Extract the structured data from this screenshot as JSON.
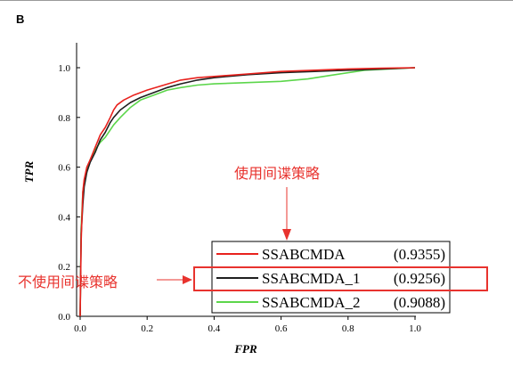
{
  "panel_label": "B",
  "chart_data": {
    "type": "line",
    "xlabel": "FPR",
    "ylabel": "TPR",
    "xlim": [
      0.0,
      1.0
    ],
    "ylim": [
      0.0,
      1.05
    ],
    "x_ticks": [
      "0.0",
      "0.2",
      "0.4",
      "0.6",
      "0.8",
      "1.0"
    ],
    "y_ticks": [
      "0.0",
      "0.2",
      "0.4",
      "0.6",
      "0.8",
      "1.0"
    ],
    "grid": false,
    "legend_position": "bottom-right",
    "series": [
      {
        "name": "SSABCMDA",
        "auc": "(0.9355)",
        "color": "#e8211d",
        "x": [
          0.0,
          0.003,
          0.008,
          0.012,
          0.02,
          0.03,
          0.045,
          0.06,
          0.075,
          0.09,
          0.1,
          0.11,
          0.13,
          0.16,
          0.2,
          0.25,
          0.3,
          0.35,
          0.4,
          0.5,
          0.6,
          0.7,
          0.8,
          0.9,
          1.0
        ],
        "y": [
          0.0,
          0.3,
          0.5,
          0.55,
          0.6,
          0.63,
          0.68,
          0.73,
          0.76,
          0.8,
          0.83,
          0.85,
          0.87,
          0.89,
          0.91,
          0.93,
          0.95,
          0.96,
          0.965,
          0.975,
          0.985,
          0.99,
          0.995,
          0.998,
          1.0
        ]
      },
      {
        "name": "SSABCMDA_1",
        "auc": "(0.9256)",
        "color": "#1f1f1f",
        "x": [
          0.0,
          0.003,
          0.008,
          0.012,
          0.02,
          0.03,
          0.045,
          0.06,
          0.075,
          0.09,
          0.1,
          0.12,
          0.15,
          0.18,
          0.22,
          0.26,
          0.3,
          0.35,
          0.4,
          0.5,
          0.6,
          0.7,
          0.8,
          0.9,
          1.0
        ],
        "y": [
          0.0,
          0.33,
          0.45,
          0.52,
          0.58,
          0.62,
          0.66,
          0.71,
          0.74,
          0.78,
          0.8,
          0.83,
          0.86,
          0.88,
          0.9,
          0.92,
          0.935,
          0.95,
          0.96,
          0.972,
          0.98,
          0.985,
          0.99,
          0.995,
          1.0
        ]
      },
      {
        "name": "SSABCMDA_2",
        "auc": "(0.9088)",
        "color": "#5cd64b",
        "x": [
          0.0,
          0.003,
          0.008,
          0.012,
          0.02,
          0.03,
          0.045,
          0.06,
          0.075,
          0.09,
          0.1,
          0.12,
          0.15,
          0.18,
          0.22,
          0.26,
          0.3,
          0.35,
          0.4,
          0.5,
          0.6,
          0.68,
          0.75,
          0.85,
          1.0
        ],
        "y": [
          0.0,
          0.35,
          0.5,
          0.54,
          0.58,
          0.63,
          0.67,
          0.7,
          0.72,
          0.75,
          0.77,
          0.8,
          0.84,
          0.87,
          0.89,
          0.91,
          0.92,
          0.93,
          0.935,
          0.94,
          0.945,
          0.955,
          0.97,
          0.99,
          1.0
        ]
      }
    ]
  },
  "annotations": {
    "with_strategy": "使用间谍策略",
    "without_strategy": "不使用间谍策略"
  }
}
